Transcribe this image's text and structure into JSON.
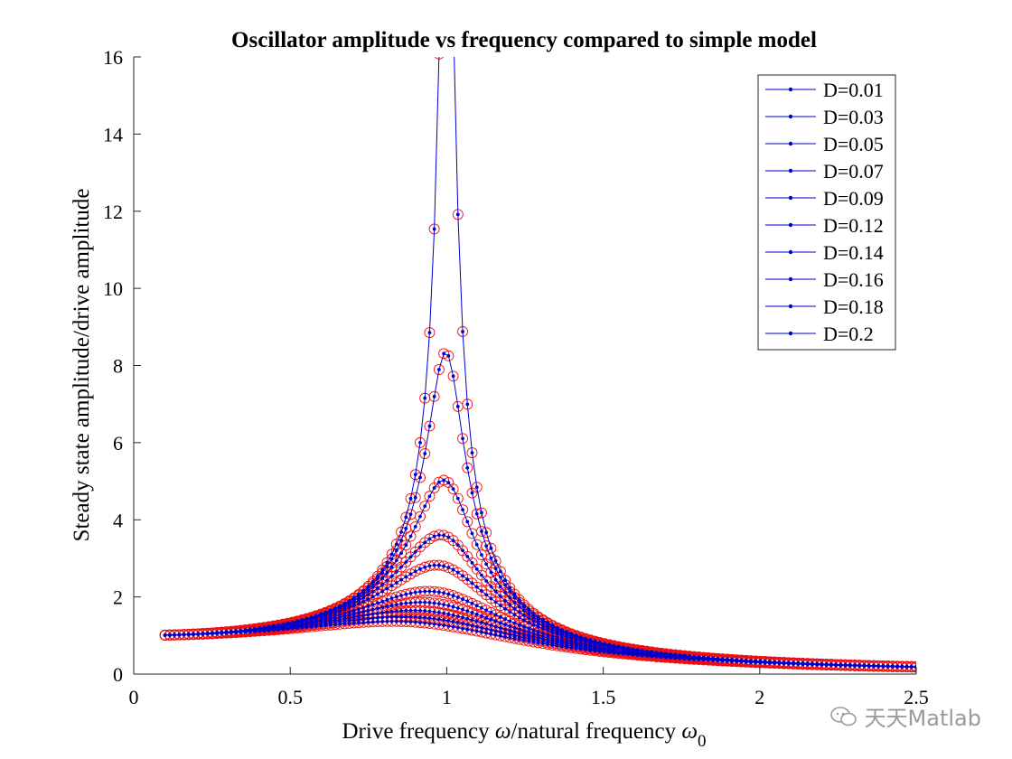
{
  "chart_data": {
    "type": "line",
    "title": "Oscillator amplitude vs frequency compared to simple model",
    "xlabel": "Drive frequency ω/natural frequency ω0",
    "ylabel": "Steady state amplitude/drive amplitude",
    "xlim": [
      0,
      2.5
    ],
    "ylim": [
      0,
      16
    ],
    "xticks": [
      "0",
      "0.5",
      "1",
      "1.5",
      "2",
      "2.5"
    ],
    "yticks": [
      "0",
      "2",
      "4",
      "6",
      "8",
      "10",
      "12",
      "14",
      "16"
    ],
    "x_range": [
      0.1,
      2.5
    ],
    "sample_count": 160,
    "grid": false,
    "legend_position": "top-right",
    "series": [
      {
        "name": "D=0.01",
        "damping": 0.01
      },
      {
        "name": "D=0.03",
        "damping": 0.03
      },
      {
        "name": "D=0.05",
        "damping": 0.05
      },
      {
        "name": "D=0.07",
        "damping": 0.07
      },
      {
        "name": "D=0.09",
        "damping": 0.09
      },
      {
        "name": "D=0.12",
        "damping": 0.12
      },
      {
        "name": "D=0.14",
        "damping": 0.14
      },
      {
        "name": "D=0.16",
        "damping": 0.16
      },
      {
        "name": "D=0.18",
        "damping": 0.18
      },
      {
        "name": "D=0.2",
        "damping": 0.2
      }
    ],
    "simulation_color": "#0000cc",
    "model_color": "#ee1111",
    "model_marker": "circle"
  },
  "watermark": "天天Matlab"
}
